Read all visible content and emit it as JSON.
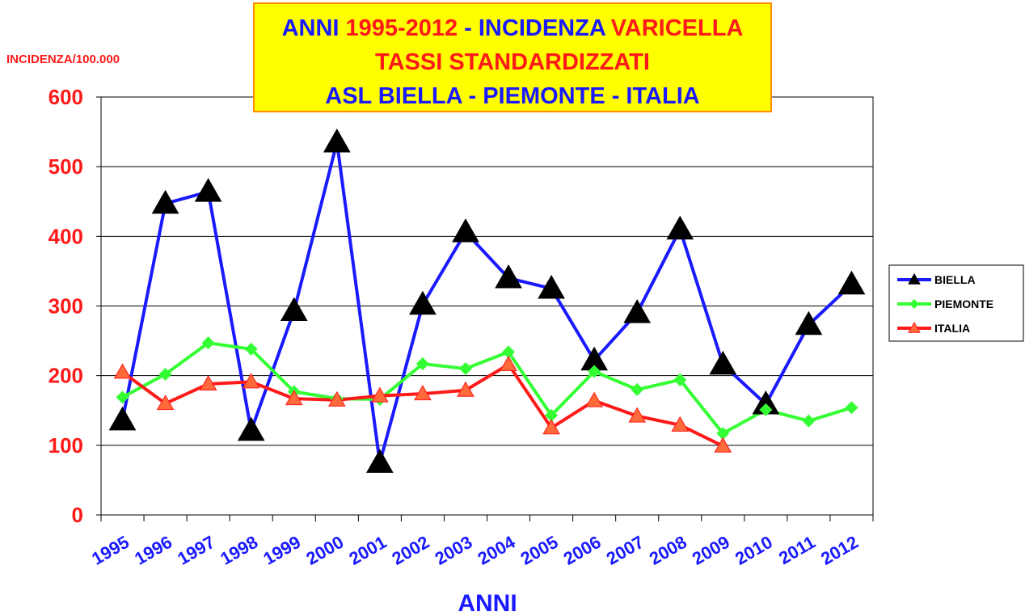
{
  "chart_data": {
    "type": "line",
    "title": [
      [
        {
          "text": "ANNI",
          "color": "#1a1aff"
        },
        {
          "text": "1995-2012",
          "color": "#ff1a1a"
        },
        {
          "text": "- INCIDENZA",
          "color": "#1a1aff"
        },
        {
          "text": "VARICELLA",
          "color": "#ff1a1a"
        }
      ],
      [
        {
          "text": "TASSI STANDARDIZZATI",
          "color": "#ff1a1a"
        }
      ],
      [
        {
          "text": "ASL BIELLA - PIEMONTE - ITALIA",
          "color": "#1a1aff"
        }
      ]
    ],
    "y_axis_label": "INCIDENZA/100.000",
    "x_axis_label": "ANNI",
    "categories": [
      "1995",
      "1996",
      "1997",
      "1998",
      "1999",
      "2000",
      "2001",
      "2002",
      "2003",
      "2004",
      "2005",
      "2006",
      "2007",
      "2008",
      "2009",
      "2010",
      "2011",
      "2012"
    ],
    "series": [
      {
        "name": "BIELLA",
        "color": "#1a1aff",
        "marker": "triangle",
        "marker_color": "#000000",
        "values": [
          136,
          447,
          464,
          121,
          293,
          535,
          75,
          302,
          406,
          340,
          325,
          222,
          290,
          410,
          216,
          159,
          273,
          331
        ]
      },
      {
        "name": "PIEMONTE",
        "color": "#33ff33",
        "marker": "diamond",
        "marker_color": "#33ff33",
        "values": [
          169,
          202,
          247,
          238,
          177,
          167,
          166,
          217,
          210,
          234,
          143,
          206,
          180,
          194,
          117,
          151,
          135,
          154
        ]
      },
      {
        "name": "ITALIA",
        "color": "#ff1a1a",
        "marker": "triangle",
        "marker_color": "#ff6a3a",
        "values": [
          205,
          160,
          188,
          191,
          167,
          165,
          171,
          174,
          179,
          216,
          125,
          164,
          142,
          129,
          99,
          null,
          null,
          null
        ]
      }
    ],
    "ylim": [
      0,
      600
    ],
    "yticks": [
      0,
      100,
      200,
      300,
      400,
      500,
      600
    ],
    "grid": true,
    "legend": "right"
  }
}
